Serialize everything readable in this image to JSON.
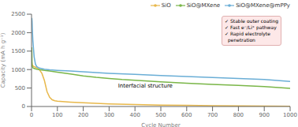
{
  "chart_data": {
    "type": "line",
    "xlabel": "Cycle Number",
    "ylabel": "Capacity (mA h g⁻¹)",
    "xlim": [
      0,
      1000
    ],
    "ylim": [
      0,
      2500
    ],
    "xticks": [
      0,
      100,
      200,
      300,
      400,
      500,
      600,
      700,
      800,
      900,
      1000
    ],
    "yticks": [
      0,
      500,
      1000,
      1500,
      2000,
      2500
    ],
    "legend": "upper right",
    "series": [
      {
        "name": "SiO",
        "color": "#e8b84b",
        "x": [
          1,
          2,
          5,
          10,
          20,
          30,
          40,
          50,
          60,
          70,
          80,
          90,
          100,
          120,
          150,
          200,
          250,
          300,
          400,
          500,
          600,
          700,
          800,
          900,
          1000
        ],
        "values": [
          1200,
          1150,
          1100,
          1080,
          1050,
          1000,
          900,
          700,
          400,
          250,
          180,
          155,
          145,
          135,
          120,
          100,
          85,
          70,
          55,
          40,
          30,
          22,
          15,
          10,
          5
        ]
      },
      {
        "name": "SiO@MXene",
        "color": "#7ab648",
        "x": [
          1,
          2,
          5,
          10,
          20,
          30,
          50,
          70,
          100,
          150,
          200,
          250,
          300,
          350,
          400,
          500,
          600,
          700,
          800,
          900,
          1000
        ],
        "values": [
          1600,
          1100,
          1050,
          1030,
          1010,
          1000,
          980,
          960,
          930,
          880,
          830,
          790,
          760,
          730,
          710,
          670,
          630,
          600,
          570,
          540,
          490
        ]
      },
      {
        "name": "SiO@MXene@mPPy",
        "color": "#6aaed6",
        "x": [
          1,
          2,
          3,
          5,
          10,
          15,
          20,
          30,
          50,
          70,
          100,
          150,
          200,
          250,
          300,
          400,
          500,
          600,
          700,
          800,
          900,
          1000
        ],
        "values": [
          2400,
          2300,
          2100,
          1800,
          1350,
          1150,
          1080,
          1040,
          1010,
          995,
          980,
          960,
          940,
          920,
          900,
          870,
          840,
          810,
          785,
          760,
          730,
          680
        ]
      }
    ],
    "annotations": [
      "✓ Stable outer coating\n✓ Fast e⁻/Li⁺ pathway\n✓ Rapid electrolyte\n  penetration",
      "Interfacial structure"
    ]
  }
}
